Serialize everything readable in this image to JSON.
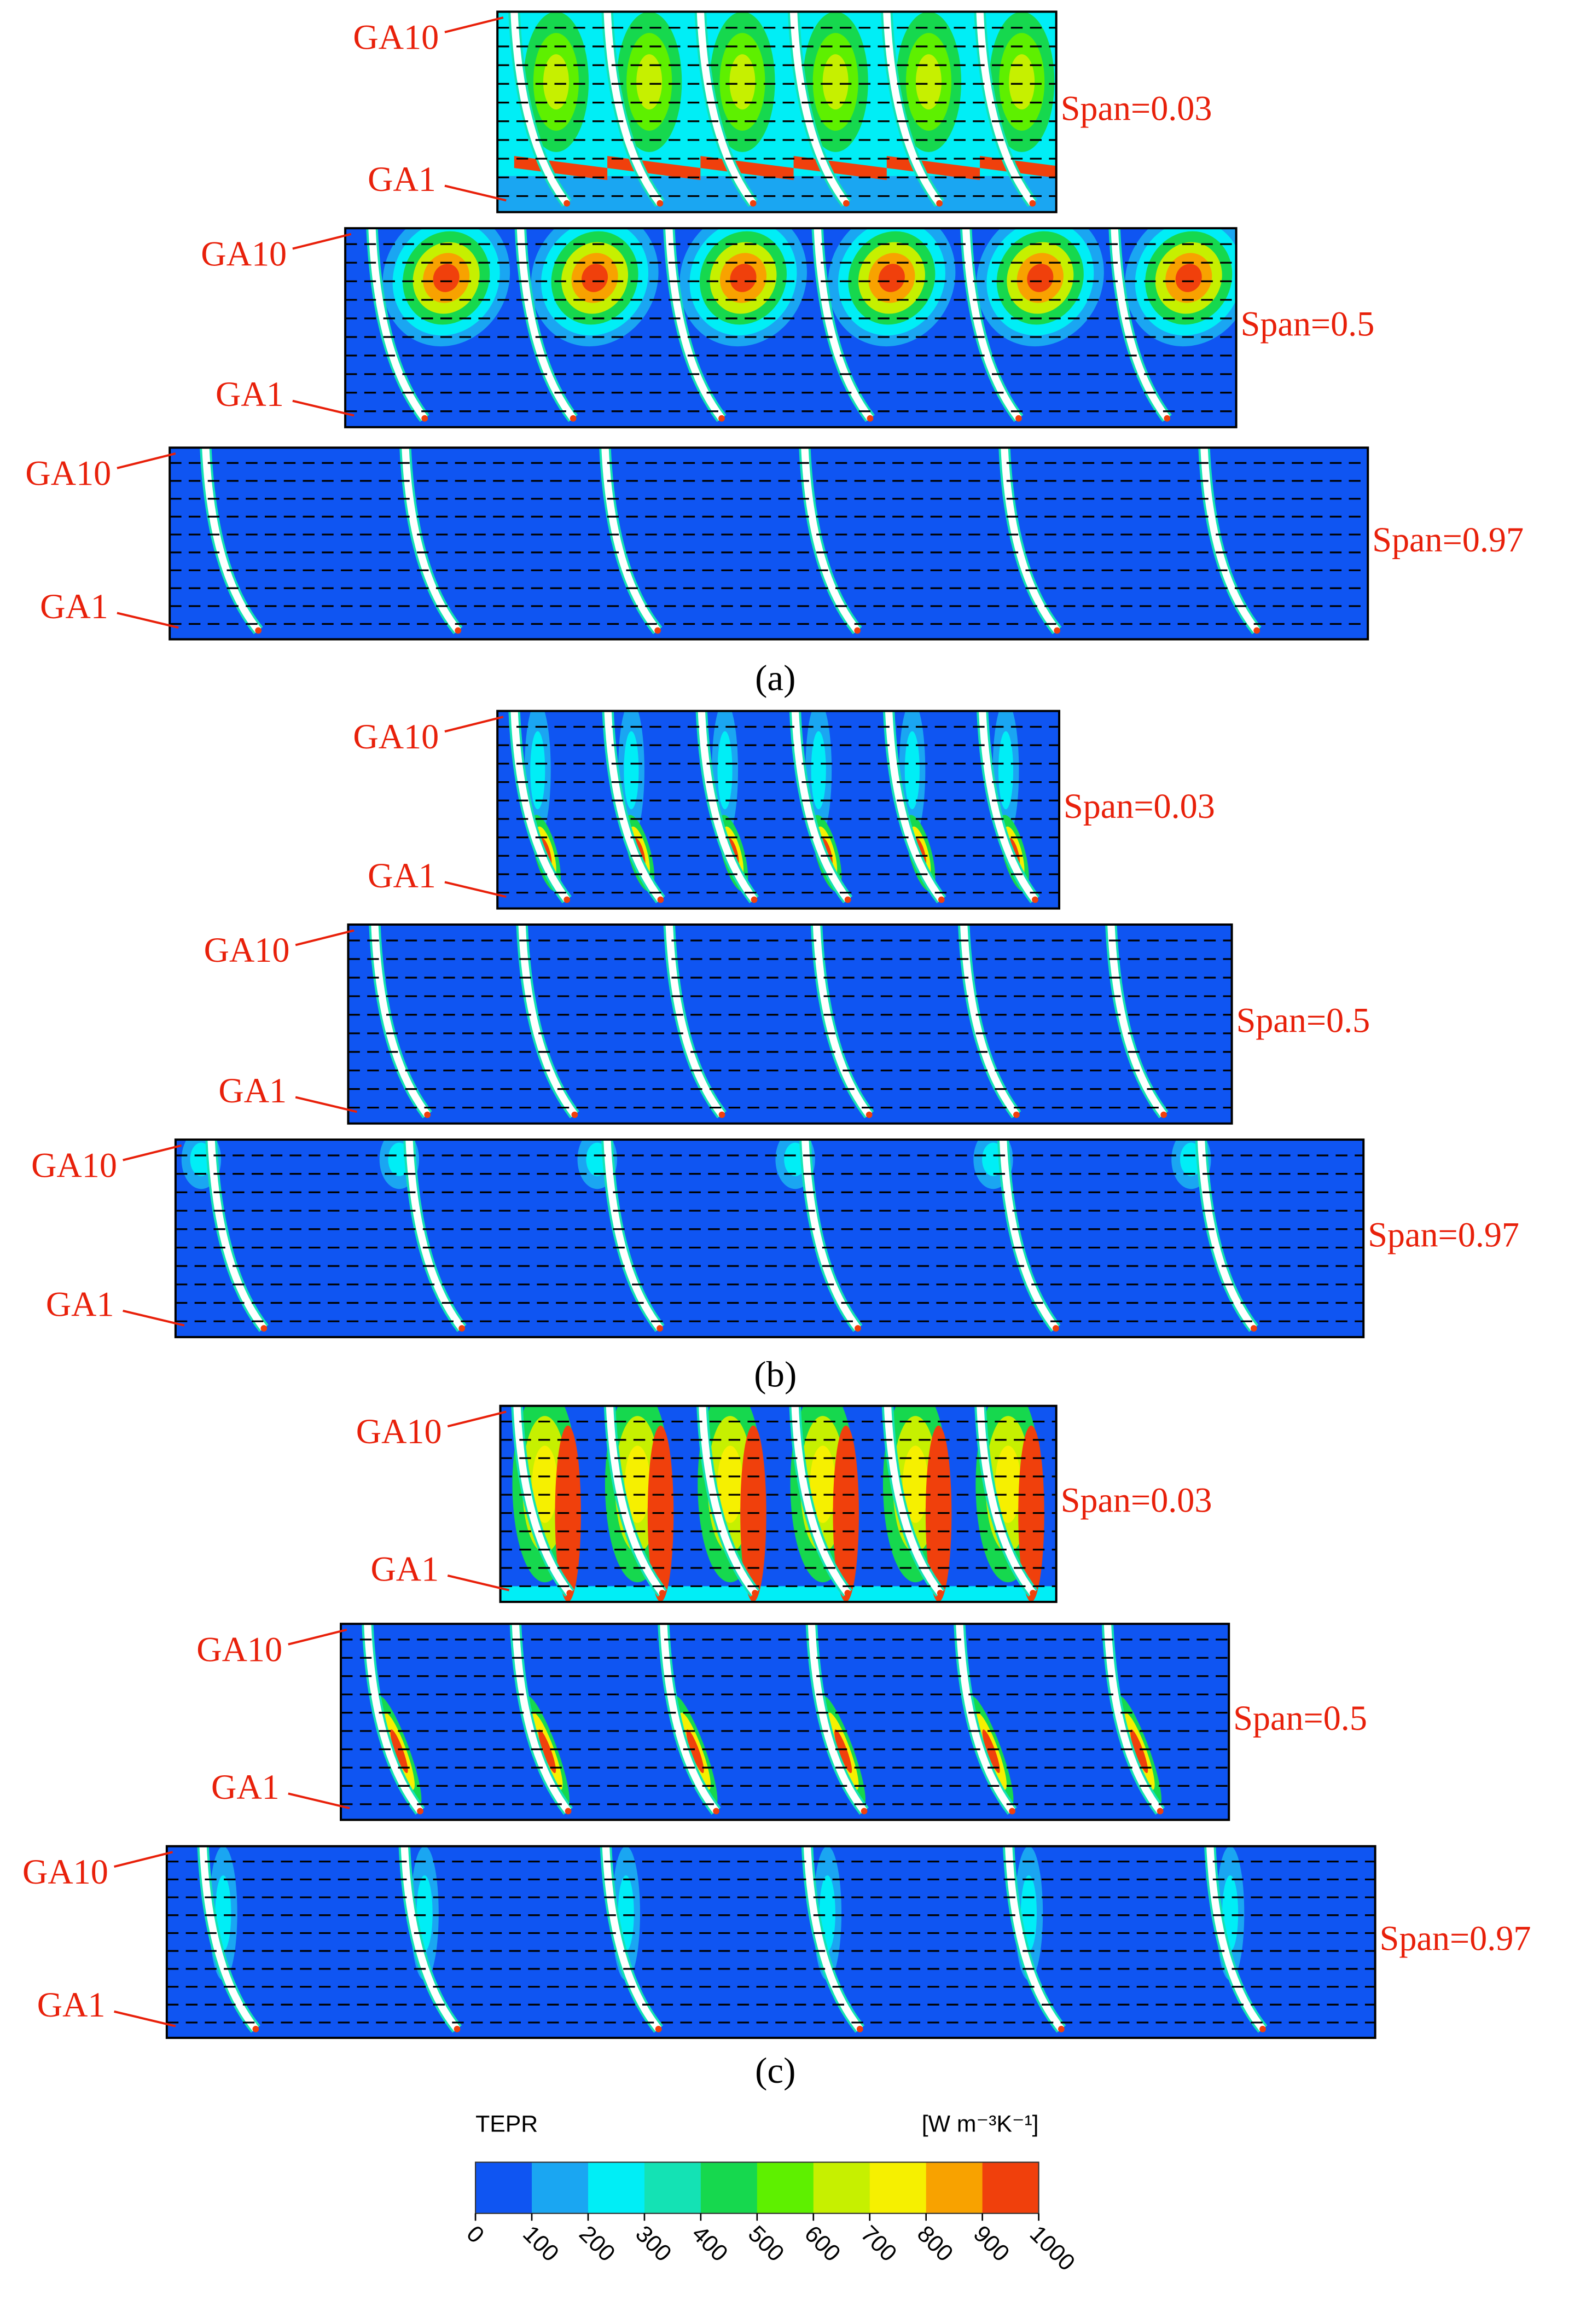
{
  "panels": [
    {
      "label": "(a)",
      "plots": [
        {
          "top_label": "GA10",
          "bottom_label": "GA1",
          "span": "Span=0.03"
        },
        {
          "top_label": "GA10",
          "bottom_label": "GA1",
          "span": "Span=0.5"
        },
        {
          "top_label": "GA10",
          "bottom_label": "GA1",
          "span": "Span=0.97"
        }
      ]
    },
    {
      "label": "(b)",
      "plots": [
        {
          "top_label": "GA10",
          "bottom_label": "GA1",
          "span": "Span=0.03"
        },
        {
          "top_label": "GA10",
          "bottom_label": "GA1",
          "span": "Span=0.5"
        },
        {
          "top_label": "GA10",
          "bottom_label": "GA1",
          "span": "Span=0.97"
        }
      ]
    },
    {
      "label": "(c)",
      "plots": [
        {
          "top_label": "GA10",
          "bottom_label": "GA1",
          "span": "Span=0.03"
        },
        {
          "top_label": "GA10",
          "bottom_label": "GA1",
          "span": "Span=0.5"
        },
        {
          "top_label": "GA10",
          "bottom_label": "GA1",
          "span": "Span=0.97"
        }
      ]
    }
  ],
  "colorbar": {
    "title": "TEPR",
    "unit": "[W m⁻³K⁻¹]",
    "ticks": [
      0,
      100,
      200,
      300,
      400,
      500,
      600,
      700,
      800,
      900,
      1000
    ],
    "colors": [
      "#0f55f2",
      "#1aa6f2",
      "#00eef6",
      "#14e2b4",
      "#16d84e",
      "#5ef000",
      "#c6f000",
      "#f6f000",
      "#f8a200",
      "#f0400c"
    ]
  }
}
